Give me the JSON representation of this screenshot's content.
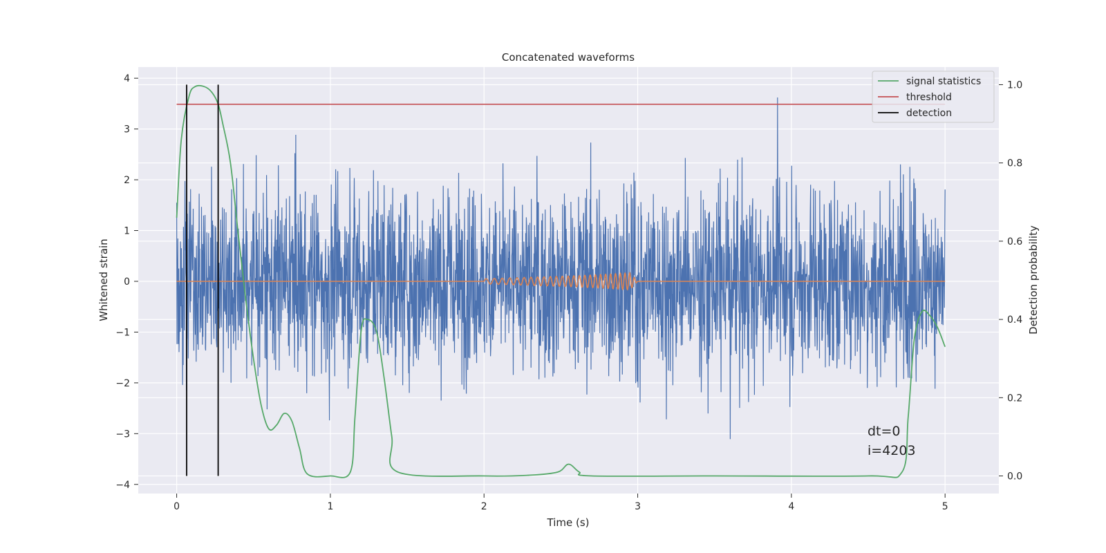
{
  "chart_data": {
    "type": "line",
    "title": "Concatenated waveforms",
    "xlabel": "Time (s)",
    "ylabel": "Whitened strain",
    "ylabel_right": "Detection probability",
    "xlim": [
      -0.25,
      5.35
    ],
    "ylim": [
      -4.18,
      4.22
    ],
    "ylim_right": [
      -0.045,
      1.045
    ],
    "xticks": [
      0,
      1,
      2,
      3,
      4,
      5
    ],
    "xtick_labels": [
      "0",
      "1",
      "2",
      "3",
      "4",
      "5"
    ],
    "yticks": [
      -4,
      -3,
      -2,
      -1,
      0,
      1,
      2,
      3,
      4
    ],
    "ytick_labels": [
      "−4",
      "−3",
      "−2",
      "−1",
      "0",
      "1",
      "2",
      "3",
      "4"
    ],
    "yticks_right": [
      0.0,
      0.2,
      0.4,
      0.6,
      0.8,
      1.0
    ],
    "ytick_labels_right": [
      "0.0",
      "0.2",
      "0.4",
      "0.6",
      "0.8",
      "1.0"
    ],
    "grid": true,
    "legend_position": "top-right",
    "series": [
      {
        "name": "",
        "axis": "left",
        "color": "#4c72b0",
        "kind": "noise",
        "x_range": [
          0,
          5
        ],
        "std": 0.9,
        "approx_max": 3.85,
        "approx_min": -3.8
      },
      {
        "name": "",
        "axis": "left",
        "color": "#dd8452",
        "kind": "chirp",
        "x": [
          0,
          2.0,
          2.2,
          2.4,
          2.6,
          2.8,
          2.95,
          3.0,
          5.0
        ],
        "y": [
          0,
          0.05,
          0.07,
          0.09,
          0.11,
          0.14,
          0.17,
          0,
          0
        ]
      },
      {
        "name": "signal statistics",
        "axis": "right",
        "color": "#55a868",
        "x": [
          0,
          0.03,
          0.08,
          0.12,
          0.18,
          0.23,
          0.27,
          0.3,
          0.35,
          0.4,
          0.45,
          0.5,
          0.55,
          0.6,
          0.65,
          0.7,
          0.75,
          0.8,
          0.85,
          1.0,
          1.13,
          1.16,
          1.2,
          1.24,
          1.3,
          1.35,
          1.4,
          1.44,
          2.0,
          2.3,
          2.48,
          2.55,
          2.62,
          2.7,
          3.5,
          4.5,
          4.72,
          4.76,
          4.8,
          4.85,
          4.9,
          4.95,
          5.0
        ],
        "y": [
          0.66,
          0.86,
          0.97,
          0.995,
          0.995,
          0.98,
          0.95,
          0.9,
          0.8,
          0.62,
          0.45,
          0.3,
          0.18,
          0.12,
          0.13,
          0.16,
          0.14,
          0.07,
          0.005,
          0.0,
          0.01,
          0.15,
          0.37,
          0.4,
          0.37,
          0.25,
          0.1,
          0.01,
          0.0,
          0.002,
          0.01,
          0.03,
          0.01,
          0.0,
          0.0,
          0.0,
          0.01,
          0.15,
          0.35,
          0.42,
          0.41,
          0.38,
          0.33
        ]
      },
      {
        "name": "threshold",
        "axis": "right",
        "color": "#c44e52",
        "x": [
          0,
          5
        ],
        "y": [
          0.95,
          0.95
        ]
      },
      {
        "name": "detection",
        "axis": "right",
        "color": "#000000",
        "kind": "vlines",
        "x": [
          0.065,
          0.27
        ],
        "ymin": 0.0,
        "ymax": 1.0
      }
    ],
    "annotations": [
      "dt=0",
      "i=4203"
    ]
  },
  "colors": {
    "plot_background": "#eaeaf2",
    "grid": "#ffffff",
    "text": "#262626"
  }
}
